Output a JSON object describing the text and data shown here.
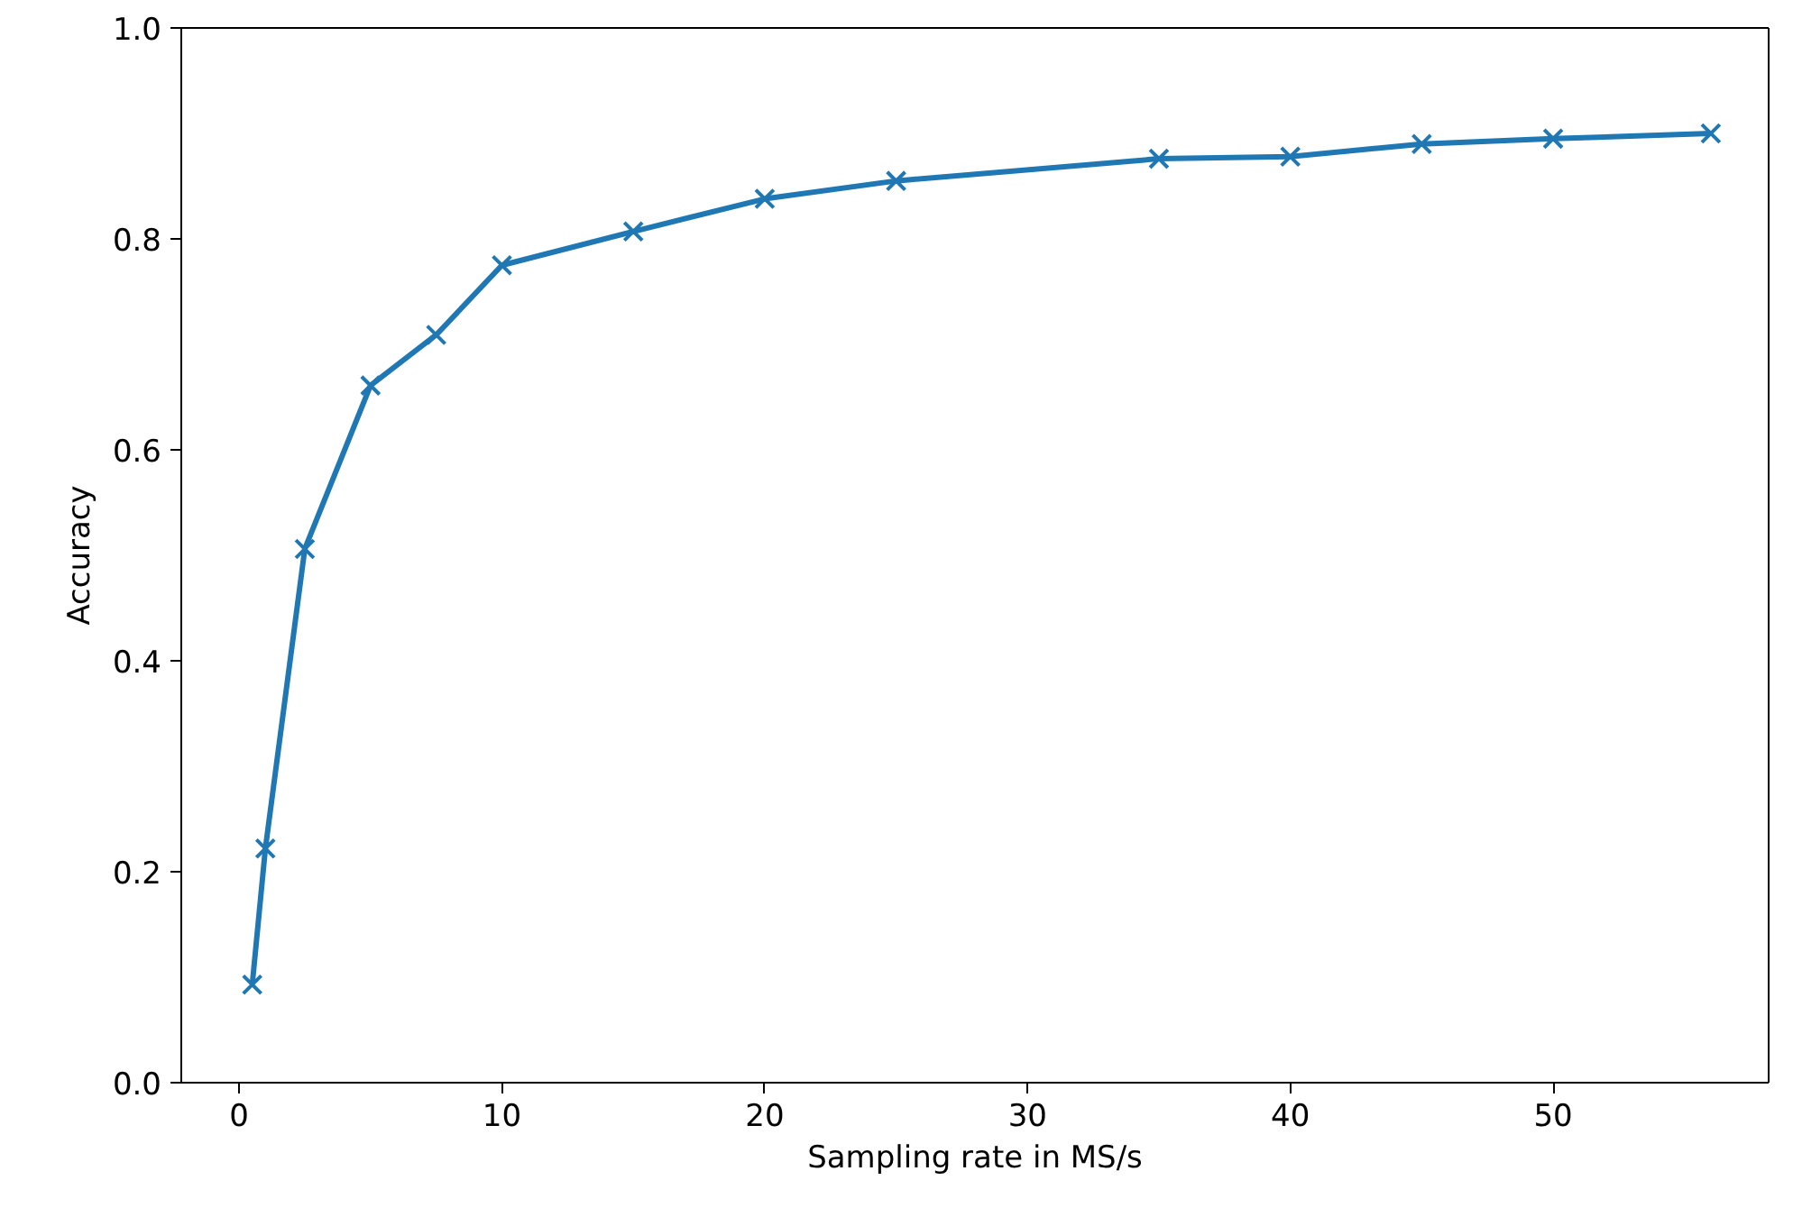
{
  "chart_data": {
    "type": "line",
    "xlabel": "Sampling rate in MS/s",
    "ylabel": "Accuracy",
    "x": [
      0.5,
      1,
      2.5,
      5,
      7.5,
      10,
      15,
      20,
      25,
      35,
      40,
      45,
      50,
      56
    ],
    "series": [
      {
        "color": "#1f77b4",
        "values": [
          0.093,
          0.222,
          0.506,
          0.661,
          0.709,
          0.775,
          0.807,
          0.838,
          0.855,
          0.876,
          0.878,
          0.89,
          0.895,
          0.9
        ]
      }
    ],
    "xlim": [
      -2.2,
      58.2
    ],
    "ylim": [
      0,
      1
    ],
    "xticks": [
      0,
      10,
      20,
      30,
      40,
      50
    ],
    "yticks": [
      {
        "value": 0,
        "label": "0.0"
      },
      0.2,
      0.4,
      0.6,
      0.8,
      {
        "value": 1,
        "label": "1.0"
      }
    ],
    "marker": "cross",
    "line_style": "solid",
    "grid": false
  }
}
